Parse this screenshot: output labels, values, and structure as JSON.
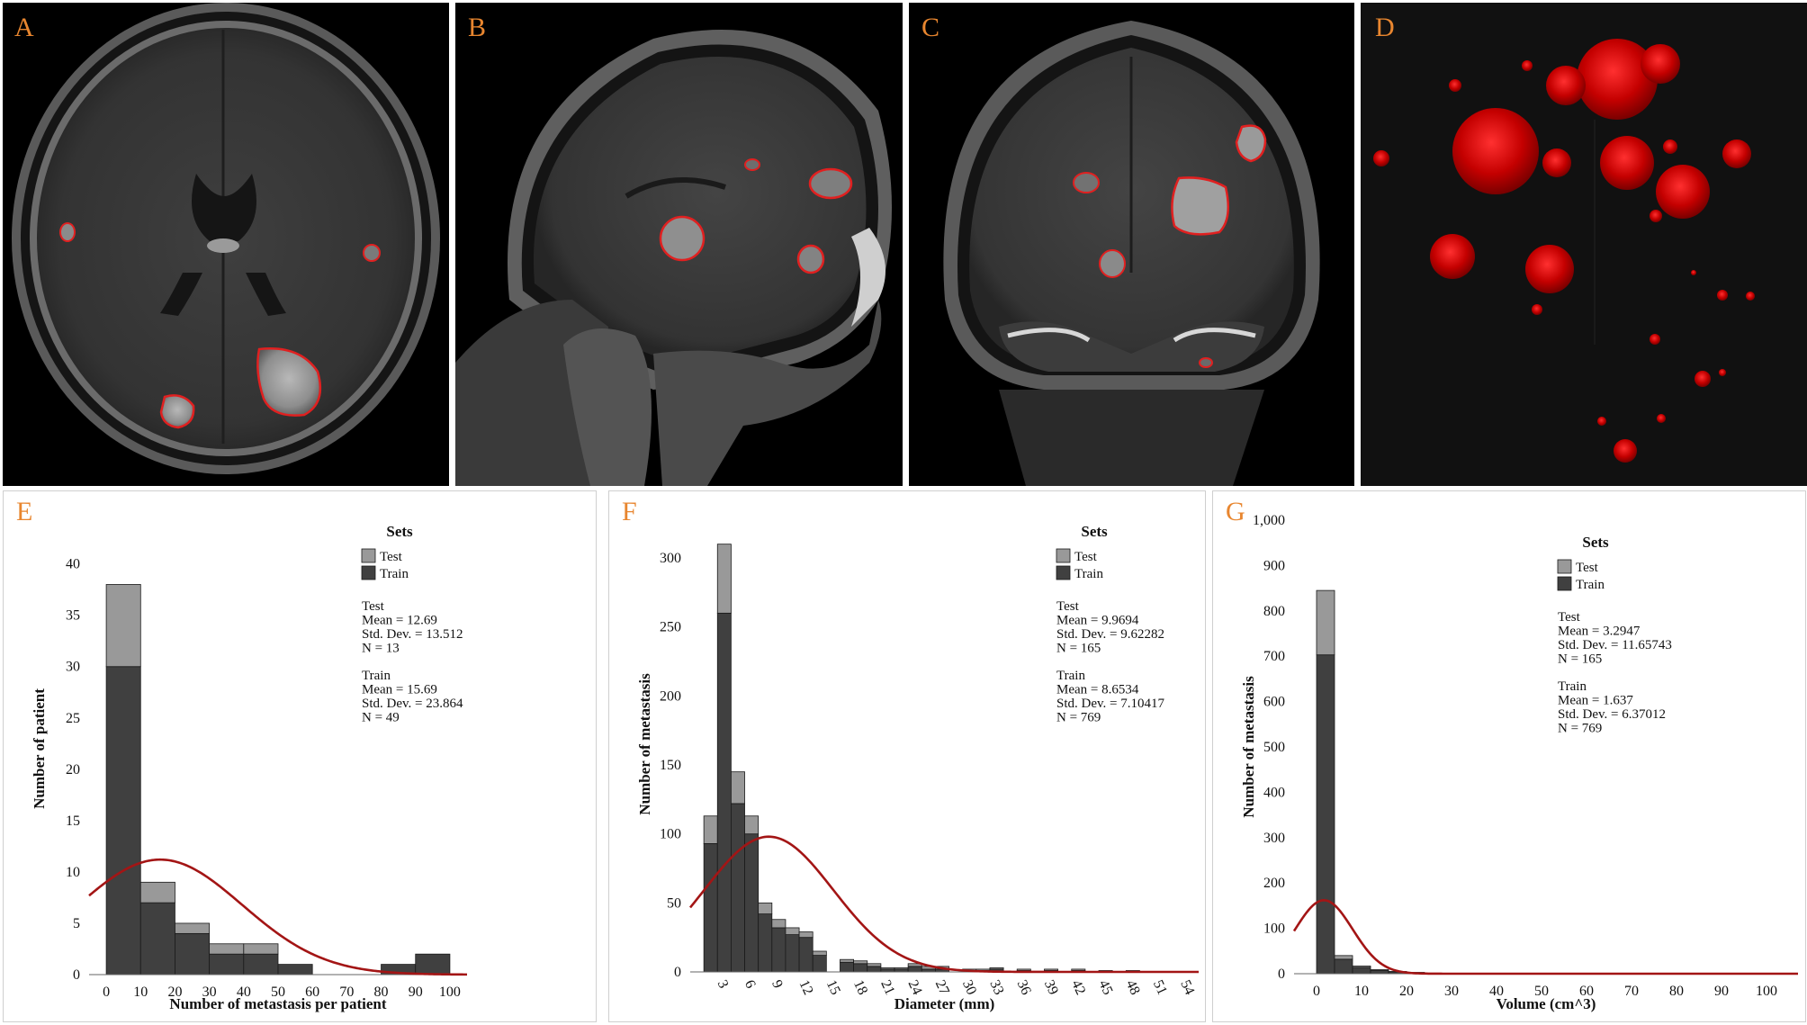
{
  "panels": {
    "A": {
      "label": "A"
    },
    "B": {
      "label": "B"
    },
    "C": {
      "label": "C"
    },
    "D": {
      "label": "D"
    }
  },
  "colors": {
    "train": "#404040",
    "test": "#999999",
    "curve": "#a31515",
    "label": "#e8862f",
    "contour": "#e02020",
    "render3d": "#c40000"
  },
  "chart_data": [
    {
      "id": "E",
      "panel_label": "E",
      "type": "bar",
      "stacked": true,
      "xlabel": "Number of metastasis per patient",
      "ylabel": "Number of patient",
      "xlim": [
        -5,
        105
      ],
      "ylim": [
        0,
        44
      ],
      "x_ticks": [
        "0",
        "10",
        "20",
        "30",
        "40",
        "50",
        "60",
        "70",
        "80",
        "90",
        "100"
      ],
      "x_tick_values": [
        0,
        10,
        20,
        30,
        40,
        50,
        60,
        70,
        80,
        90,
        100
      ],
      "y_ticks": [
        "0",
        "5",
        "10",
        "15",
        "20",
        "25",
        "30",
        "35",
        "40"
      ],
      "y_tick_values": [
        0,
        5,
        10,
        15,
        20,
        25,
        30,
        35,
        40
      ],
      "bin_edges": [
        0,
        10,
        20,
        30,
        40,
        50,
        60,
        70,
        80,
        90,
        100
      ],
      "series": [
        {
          "name": "Train",
          "values": [
            30,
            7,
            4,
            2,
            2,
            1,
            0,
            0,
            1,
            2
          ]
        },
        {
          "name": "Test",
          "values": [
            8,
            2,
            1,
            1,
            1,
            0,
            0,
            0,
            0,
            0
          ]
        }
      ],
      "curve": {
        "mean": 15.69,
        "sd": 23.864,
        "peak": 11.2
      },
      "legend": {
        "title": "Sets",
        "entries": [
          "Test",
          "Train"
        ],
        "position": "top-right"
      },
      "stats": [
        [
          "Test",
          "Mean = 12.69",
          "Std. Dev. = 13.512",
          "N = 13"
        ],
        [
          "Train",
          "Mean = 15.69",
          "Std. Dev. = 23.864",
          "N = 49"
        ]
      ]
    },
    {
      "id": "F",
      "panel_label": "F",
      "type": "bar",
      "stacked": true,
      "xlabel": "Diameter (mm)",
      "ylabel": "Number of metastasis",
      "xlim": [
        0,
        56
      ],
      "ylim": [
        0,
        330
      ],
      "x_ticks": [
        "3",
        "6",
        "9",
        "12",
        "15",
        "18",
        "21",
        "24",
        "27",
        "30",
        "33",
        "36",
        "39",
        "42",
        "45",
        "48",
        "51",
        "54"
      ],
      "x_tick_values": [
        3,
        6,
        9,
        12,
        15,
        18,
        21,
        24,
        27,
        30,
        33,
        36,
        39,
        42,
        45,
        48,
        51,
        54
      ],
      "y_ticks": [
        "0",
        "50",
        "100",
        "150",
        "200",
        "250",
        "300"
      ],
      "y_tick_values": [
        0,
        50,
        100,
        150,
        200,
        250,
        300
      ],
      "bin_start": 1.5,
      "bin_width": 1.5,
      "series": [
        {
          "name": "Train",
          "values": [
            93,
            260,
            122,
            100,
            42,
            32,
            27,
            25,
            12,
            0,
            7,
            6,
            4,
            2,
            2,
            4,
            2,
            2,
            0,
            1,
            1,
            2,
            0,
            1,
            0,
            1,
            0,
            1,
            0,
            0,
            0,
            0,
            0
          ]
        },
        {
          "name": "Test",
          "values": [
            20,
            50,
            23,
            13,
            8,
            6,
            5,
            4,
            3,
            0,
            2,
            2,
            2,
            1,
            1,
            2,
            2,
            2,
            0,
            1,
            1,
            1,
            0,
            1,
            0,
            1,
            0,
            1,
            0,
            1,
            0,
            1,
            0
          ]
        }
      ],
      "curve": {
        "mean": 8.6534,
        "sd": 7.10417,
        "peak": 98
      },
      "legend": {
        "title": "Sets",
        "entries": [
          "Test",
          "Train"
        ],
        "position": "top-right"
      },
      "stats": [
        [
          "Test",
          "Mean = 9.9694",
          "Std. Dev. = 9.62282",
          "N = 165"
        ],
        [
          "Train",
          "Mean = 8.6534",
          "Std. Dev. = 7.10417",
          "N = 769"
        ]
      ]
    },
    {
      "id": "G",
      "panel_label": "G",
      "type": "bar",
      "stacked": true,
      "xlabel": "Volume (cm^3)",
      "ylabel": "Number of metastasis",
      "xlim": [
        -5,
        107
      ],
      "ylim": [
        0,
        1000
      ],
      "x_ticks": [
        "0",
        "10",
        "20",
        "30",
        "40",
        "50",
        "60",
        "70",
        "80",
        "90",
        "100"
      ],
      "x_tick_values": [
        0,
        10,
        20,
        30,
        40,
        50,
        60,
        70,
        80,
        90,
        100
      ],
      "y_ticks": [
        "0",
        "100",
        "200",
        "300",
        "400",
        "500",
        "600",
        "700",
        "800",
        "900",
        "1,000"
      ],
      "y_tick_values": [
        0,
        100,
        200,
        300,
        400,
        500,
        600,
        700,
        800,
        900,
        1000
      ],
      "bin_start": 0,
      "bin_width": 4,
      "series": [
        {
          "name": "Train",
          "values": [
            703,
            32,
            14,
            7,
            4,
            2,
            1,
            1,
            1,
            0,
            1,
            0
          ]
        },
        {
          "name": "Test",
          "values": [
            142,
            8,
            3,
            2,
            1,
            1,
            0,
            0,
            0,
            0,
            0,
            0
          ]
        }
      ],
      "curve": {
        "mean": 1.637,
        "sd": 6.37012,
        "peak": 162
      },
      "legend": {
        "title": "Sets",
        "entries": [
          "Test",
          "Train"
        ],
        "position": "top-right"
      },
      "stats": [
        [
          "Test",
          "Mean = 3.2947",
          "Std. Dev. = 11.65743",
          "N = 165"
        ],
        [
          "Train",
          "Mean = 1.637",
          "Std. Dev. = 6.37012",
          "N = 769"
        ]
      ]
    }
  ]
}
